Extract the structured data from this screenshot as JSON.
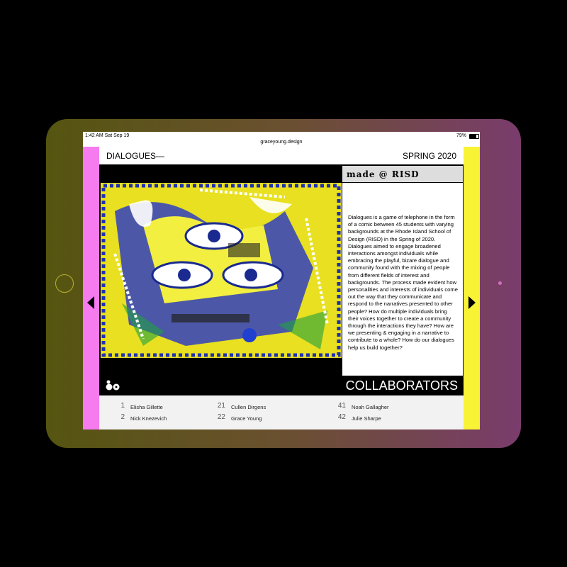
{
  "status_bar": {
    "time": "1:42 AM  Sat Sep 19",
    "battery": "79%",
    "url": "graceyoung.design"
  },
  "header": {
    "title": "DIALOGUES—",
    "season": "SPRING 2020"
  },
  "panel": {
    "heading": "made @ RISD",
    "text": "Dialogues is a game of telephone in the form of a comic between 45 students with varying backgrounds at the Rhode Island School of Design (RISD) in the Spring of 2020. Dialogues aimed to engage broadened interactions amongst individuals while embracing the playful, bizare dialogue and community found with the mixing of people from different fields of interest and backgrounds. The process made evident how personalities and interests of individuals come out the way that they communicate and respond to the narratives presented to other people? How do multiple individuals bring their voices together to create a community through the interactions they have? How are we presenting & engaging in a narrative to contribute to a whole? How do our dialogues help us build together?"
  },
  "collaborators": {
    "title": "COLLABORATORS",
    "people": [
      {
        "number": 1,
        "name": "Elisha Gillette"
      },
      {
        "number": 2,
        "name": "Nick Knezevich"
      },
      {
        "number": 21,
        "name": "Cullen Dirgens"
      },
      {
        "number": 22,
        "name": "Grace Young"
      },
      {
        "number": 41,
        "name": "Noah Gallagher"
      },
      {
        "number": 42,
        "name": "Julie Sharpe"
      }
    ]
  }
}
